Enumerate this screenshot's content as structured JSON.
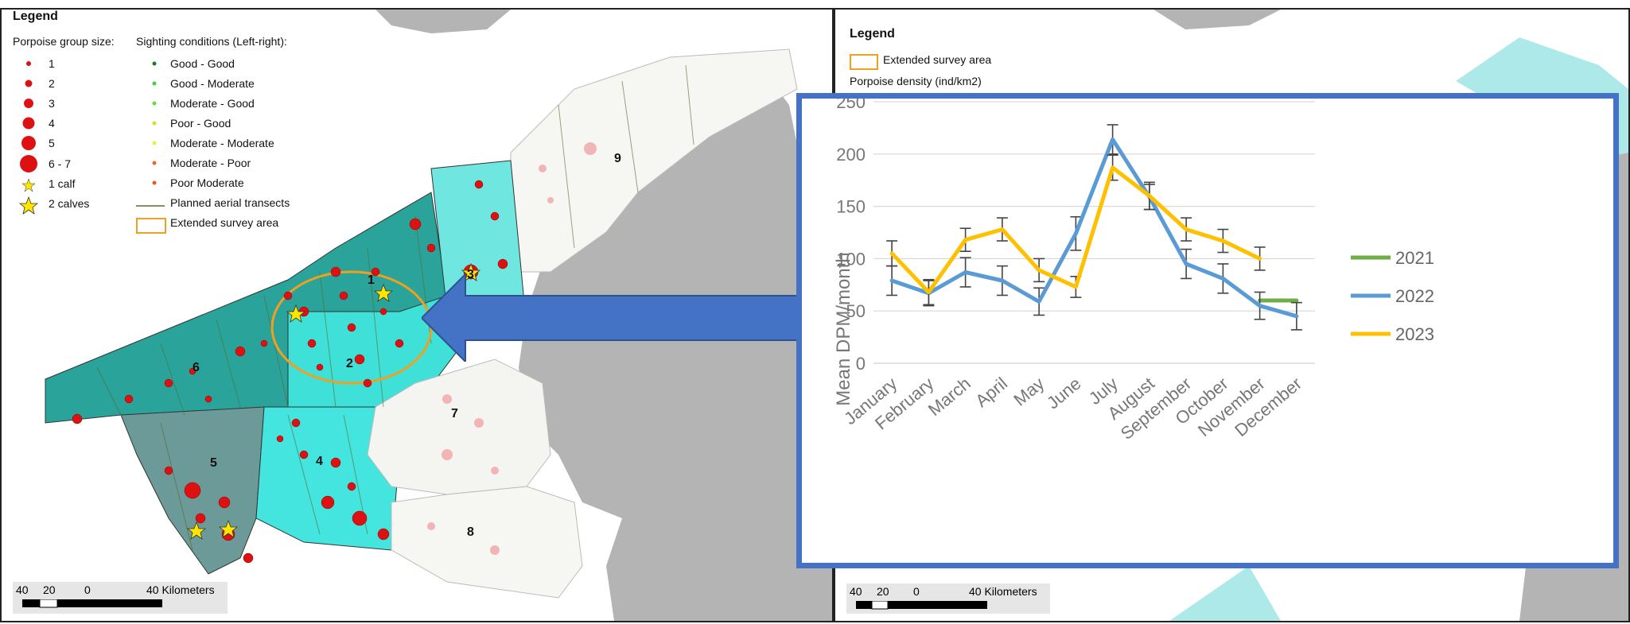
{
  "left_map": {
    "legend_title": "Legend",
    "group_size_title": "Porpoise group size:",
    "group_sizes": [
      "1",
      "2",
      "3",
      "4",
      "5",
      "6 - 7",
      "1 calf",
      "2 calves"
    ],
    "conditions_title": "Sighting conditions (Left-right):",
    "conditions": [
      {
        "label": "Good - Good",
        "color": "#1f7a1f"
      },
      {
        "label": "Good - Moderate",
        "color": "#44cc44"
      },
      {
        "label": "Moderate - Good",
        "color": "#66dd33"
      },
      {
        "label": "Poor - Good",
        "color": "#dddd22"
      },
      {
        "label": "Moderate - Moderate",
        "color": "#eeee33"
      },
      {
        "label": "Moderate - Poor",
        "color": "#ee6622"
      },
      {
        "label": "Poor Moderate",
        "color": "#ee5522"
      }
    ],
    "transects_label": "Planned aerial transects",
    "survey_area_label": "Extended survey area",
    "zone_labels": [
      "9",
      "1",
      "3",
      "6",
      "2",
      "7",
      "5",
      "4",
      "8"
    ],
    "scale": {
      "ticks": [
        "40",
        "20",
        "0",
        "40 Kilometers"
      ]
    }
  },
  "right_map": {
    "legend_title": "Legend",
    "survey_area_label": "Extended survey area",
    "density_label": "Porpoise density (ind/km2)",
    "scale": {
      "ticks": [
        "40",
        "20",
        "0",
        "40 Kilometers"
      ]
    }
  },
  "colors": {
    "porpoise": "#dd1111",
    "survey_outline": "#f0a020",
    "arrow": "#4472c4",
    "land": "#b4b4b4",
    "zone_teal": "#2aa39a",
    "zone_cyan": "#3fe0d8",
    "zone_grey": "#6c9a98"
  },
  "chart_data": {
    "type": "line",
    "ylabel": "Mean DPM/month",
    "ylim": [
      0,
      250
    ],
    "yticks": [
      0,
      50,
      100,
      150,
      200,
      250
    ],
    "categories": [
      "January",
      "February",
      "March",
      "April",
      "May",
      "June",
      "July",
      "August",
      "September",
      "October",
      "November",
      "December"
    ],
    "series": [
      {
        "name": "2021",
        "color": "#70ad47",
        "values": [
          null,
          null,
          null,
          null,
          null,
          null,
          null,
          null,
          null,
          null,
          60,
          60
        ],
        "errors": [
          null,
          null,
          null,
          null,
          null,
          null,
          null,
          null,
          null,
          null,
          null,
          null
        ]
      },
      {
        "name": "2022",
        "color": "#5b9bd5",
        "values": [
          79,
          67,
          87,
          79,
          59,
          124,
          214,
          159,
          95,
          81,
          55,
          45
        ],
        "errors": [
          14,
          12,
          14,
          14,
          13,
          16,
          14,
          12,
          14,
          14,
          13,
          13
        ]
      },
      {
        "name": "2023",
        "color": "#ffc000",
        "values": [
          105,
          68,
          118,
          128,
          89,
          73,
          187,
          160,
          128,
          117,
          100,
          null
        ],
        "errors": [
          12,
          12,
          11,
          11,
          11,
          10,
          12,
          13,
          11,
          11,
          11,
          null
        ]
      }
    ],
    "grid": true,
    "legend_position": "right"
  }
}
